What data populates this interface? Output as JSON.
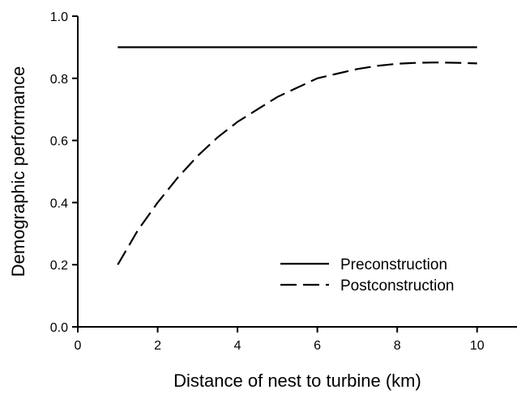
{
  "chart_data": {
    "type": "line",
    "title": "",
    "xlabel": "Distance of nest to turbine (km)",
    "ylabel": "Demographic performance",
    "xlim": [
      0,
      11
    ],
    "ylim": [
      0,
      1.0
    ],
    "xticks": [
      0,
      2,
      4,
      6,
      8,
      10
    ],
    "yticks": [
      0.0,
      0.2,
      0.4,
      0.6,
      0.8,
      1.0
    ],
    "xtick_labels": [
      "0",
      "2",
      "4",
      "6",
      "8",
      "10"
    ],
    "ytick_labels": [
      "0.0",
      "0.2",
      "0.4",
      "0.6",
      "0.8",
      "1.0"
    ],
    "grid": false,
    "legend_position": "bottom-right",
    "series": [
      {
        "name": "Preconstruction",
        "line_style": "solid",
        "color": "#000000",
        "x": [
          1,
          10
        ],
        "y": [
          0.9,
          0.9
        ]
      },
      {
        "name": "Postconstruction",
        "line_style": "dashed",
        "color": "#000000",
        "x": [
          1,
          1.5,
          2,
          2.5,
          3,
          3.5,
          4,
          4.5,
          5,
          5.5,
          6,
          6.5,
          7,
          7.5,
          8,
          8.5,
          9,
          9.5,
          10
        ],
        "y": [
          0.2,
          0.31,
          0.4,
          0.48,
          0.55,
          0.61,
          0.66,
          0.7,
          0.74,
          0.77,
          0.8,
          0.815,
          0.83,
          0.84,
          0.847,
          0.85,
          0.851,
          0.85,
          0.848
        ]
      }
    ]
  }
}
